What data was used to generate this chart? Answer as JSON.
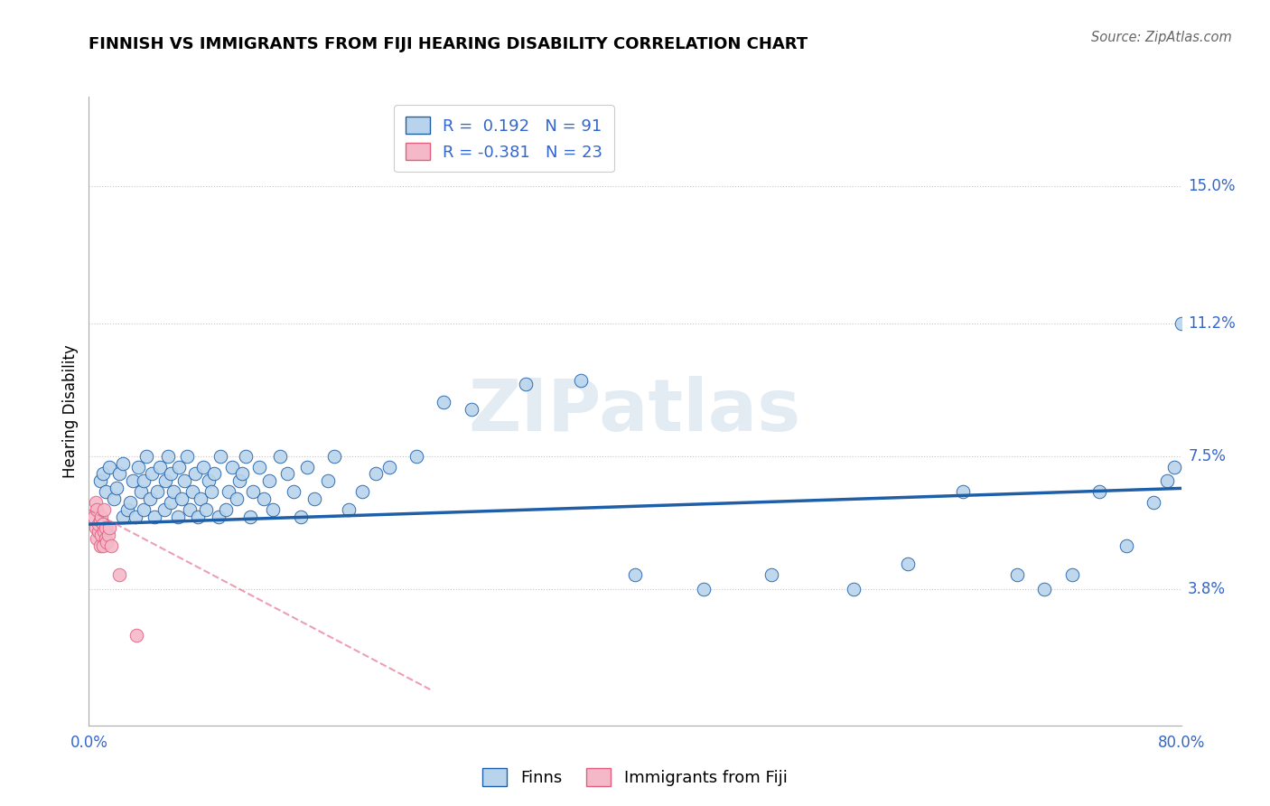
{
  "title": "FINNISH VS IMMIGRANTS FROM FIJI HEARING DISABILITY CORRELATION CHART",
  "source": "Source: ZipAtlas.com",
  "ylabel": "Hearing Disability",
  "xlim": [
    0.0,
    0.8
  ],
  "ylim": [
    0.0,
    0.175
  ],
  "ytick_vals": [
    0.0,
    0.038,
    0.075,
    0.112,
    0.15
  ],
  "ytick_labels": [
    "",
    "3.8%",
    "7.5%",
    "11.2%",
    "15.0%"
  ],
  "xtick_positions": [
    0.0,
    0.2,
    0.4,
    0.6,
    0.8
  ],
  "xtick_labels": [
    "0.0%",
    "",
    "",
    "",
    "80.0%"
  ],
  "hlines": [
    0.038,
    0.075,
    0.112,
    0.15
  ],
  "R_finns": 0.192,
  "N_finns": 91,
  "R_fiji": -0.381,
  "N_fiji": 23,
  "finns_color": "#b8d4ed",
  "fiji_color": "#f5b8c8",
  "line_finns_color": "#1e5fa8",
  "line_fiji_color": "#e06080",
  "finns_x": [
    0.008,
    0.01,
    0.012,
    0.015,
    0.018,
    0.02,
    0.022,
    0.025,
    0.025,
    0.028,
    0.03,
    0.032,
    0.034,
    0.036,
    0.038,
    0.04,
    0.04,
    0.042,
    0.045,
    0.046,
    0.048,
    0.05,
    0.052,
    0.055,
    0.056,
    0.058,
    0.06,
    0.06,
    0.062,
    0.065,
    0.066,
    0.068,
    0.07,
    0.072,
    0.074,
    0.076,
    0.078,
    0.08,
    0.082,
    0.084,
    0.086,
    0.088,
    0.09,
    0.092,
    0.095,
    0.096,
    0.1,
    0.102,
    0.105,
    0.108,
    0.11,
    0.112,
    0.115,
    0.118,
    0.12,
    0.125,
    0.128,
    0.132,
    0.135,
    0.14,
    0.145,
    0.15,
    0.155,
    0.16,
    0.165,
    0.175,
    0.18,
    0.19,
    0.2,
    0.21,
    0.22,
    0.24,
    0.26,
    0.28,
    0.32,
    0.36,
    0.4,
    0.45,
    0.5,
    0.56,
    0.6,
    0.64,
    0.68,
    0.7,
    0.72,
    0.74,
    0.76,
    0.78,
    0.79,
    0.795,
    0.8
  ],
  "finns_y": [
    0.068,
    0.07,
    0.065,
    0.072,
    0.063,
    0.066,
    0.07,
    0.058,
    0.073,
    0.06,
    0.062,
    0.068,
    0.058,
    0.072,
    0.065,
    0.06,
    0.068,
    0.075,
    0.063,
    0.07,
    0.058,
    0.065,
    0.072,
    0.06,
    0.068,
    0.075,
    0.062,
    0.07,
    0.065,
    0.058,
    0.072,
    0.063,
    0.068,
    0.075,
    0.06,
    0.065,
    0.07,
    0.058,
    0.063,
    0.072,
    0.06,
    0.068,
    0.065,
    0.07,
    0.058,
    0.075,
    0.06,
    0.065,
    0.072,
    0.063,
    0.068,
    0.07,
    0.075,
    0.058,
    0.065,
    0.072,
    0.063,
    0.068,
    0.06,
    0.075,
    0.07,
    0.065,
    0.058,
    0.072,
    0.063,
    0.068,
    0.075,
    0.06,
    0.065,
    0.07,
    0.072,
    0.075,
    0.09,
    0.088,
    0.095,
    0.096,
    0.042,
    0.038,
    0.042,
    0.038,
    0.045,
    0.065,
    0.042,
    0.038,
    0.042,
    0.065,
    0.05,
    0.062,
    0.068,
    0.072,
    0.112
  ],
  "fiji_x": [
    0.004,
    0.005,
    0.005,
    0.006,
    0.006,
    0.007,
    0.007,
    0.008,
    0.008,
    0.009,
    0.009,
    0.01,
    0.01,
    0.011,
    0.011,
    0.012,
    0.012,
    0.013,
    0.014,
    0.015,
    0.016,
    0.022,
    0.035
  ],
  "fiji_y": [
    0.058,
    0.055,
    0.062,
    0.052,
    0.06,
    0.054,
    0.056,
    0.05,
    0.057,
    0.053,
    0.058,
    0.05,
    0.056,
    0.054,
    0.06,
    0.052,
    0.055,
    0.051,
    0.053,
    0.055,
    0.05,
    0.042,
    0.025
  ]
}
